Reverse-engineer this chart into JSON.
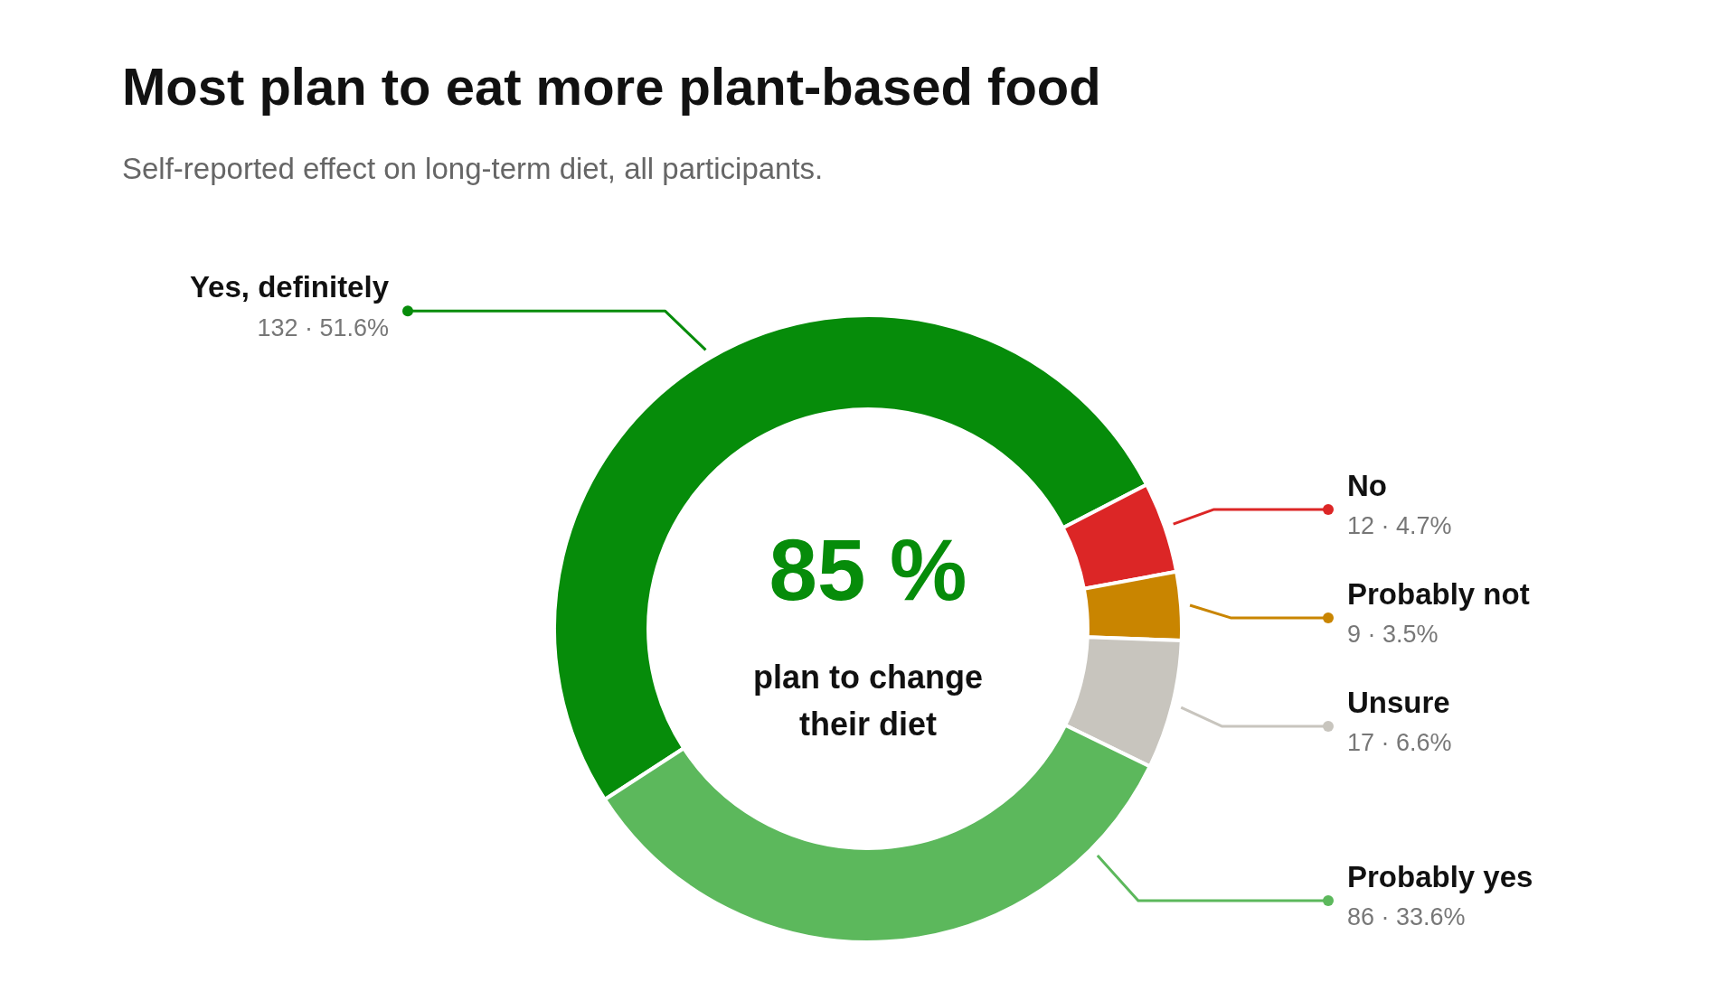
{
  "chart_data": {
    "type": "donut",
    "title": "Most plan to eat more plant-based food",
    "subtitle": "Self-reported effect on long-term diet, all participants.",
    "categories": [
      "Yes, definitely",
      "No",
      "Probably not",
      "Unsure",
      "Probably yes"
    ],
    "values": [
      132,
      12,
      9,
      17,
      86
    ],
    "colors": [
      "#068c0a",
      "#dc2626",
      "#c98500",
      "#c8c5be",
      "#5cb85c"
    ],
    "value_labels": [
      "132 · 51.6%",
      "12 · 4.7%",
      "9 · 3.5%",
      "17 · 6.6%",
      "86 · 33.6%"
    ],
    "annotations": [
      "85 %",
      "plan to change their diet"
    ],
    "legend": false
  }
}
